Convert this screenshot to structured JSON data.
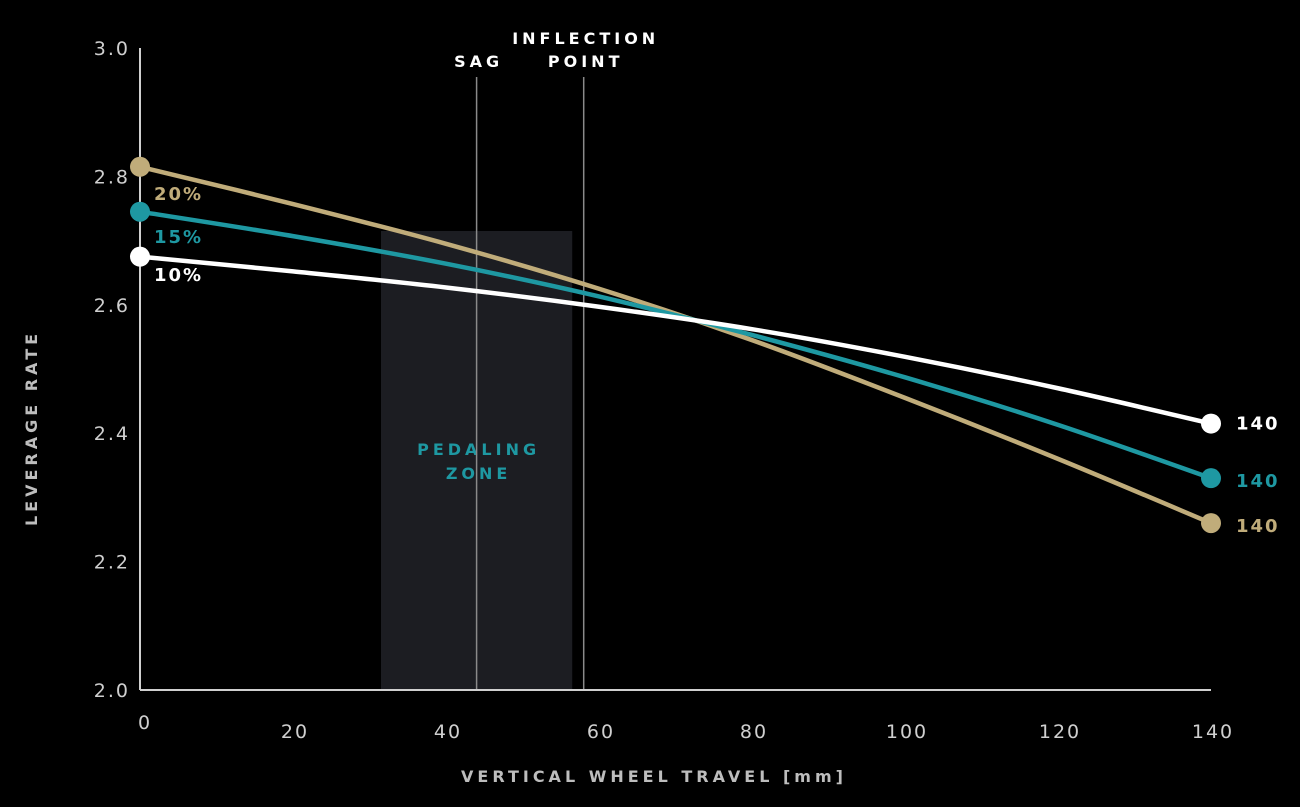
{
  "chart_data": {
    "type": "line",
    "xlabel": "VERTICAL WHEEL TRAVEL [mm]",
    "ylabel": "LEVERAGE RATE",
    "xlim": [
      0,
      140
    ],
    "ylim": [
      2.0,
      3.0
    ],
    "x_ticks": [
      "0",
      "20",
      "40",
      "60",
      "80",
      "100",
      "120",
      "140"
    ],
    "x_tick_values": [
      0,
      20,
      40,
      60,
      80,
      100,
      120,
      140
    ],
    "y_ticks": [
      "2.0",
      "2.2",
      "2.4",
      "2.6",
      "2.8",
      "3.0"
    ],
    "y_tick_values": [
      2.0,
      2.2,
      2.4,
      2.6,
      2.8,
      3.0
    ],
    "grid": false,
    "series": [
      {
        "name": "20%",
        "end_label": "140",
        "color": "#c0ac7a",
        "x": [
          0,
          20,
          40,
          60,
          80,
          100,
          120,
          140
        ],
        "y": [
          2.815,
          2.757,
          2.695,
          2.625,
          2.545,
          2.455,
          2.36,
          2.26
        ]
      },
      {
        "name": "15%",
        "end_label": "140",
        "color": "#1e98a2",
        "x": [
          0,
          20,
          40,
          60,
          80,
          100,
          120,
          140
        ],
        "y": [
          2.745,
          2.707,
          2.664,
          2.613,
          2.553,
          2.487,
          2.413,
          2.33
        ]
      },
      {
        "name": "10%",
        "end_label": "140",
        "color": "#ffffff",
        "x": [
          0,
          20,
          40,
          60,
          80,
          100,
          120,
          140
        ],
        "y": [
          2.675,
          2.652,
          2.627,
          2.597,
          2.562,
          2.519,
          2.47,
          2.415
        ]
      }
    ],
    "markers": [
      {
        "label": "SAG",
        "x": 44
      },
      {
        "label_lines": [
          "INFLECTION",
          "POINT"
        ],
        "x": 58
      }
    ],
    "zones": [
      {
        "label_lines": [
          "PEDALING",
          "ZONE"
        ],
        "x_start": 31.5,
        "x_end": 56.5,
        "color": "#1c1d22",
        "label_color": "#1e98a2"
      }
    ]
  }
}
